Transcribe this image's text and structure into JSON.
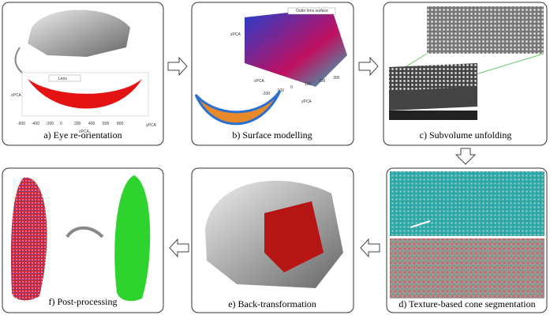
{
  "panels": [
    {
      "caption": "a) Eye re-orientation",
      "legend": "Lens",
      "axis_labels": [
        "zPCA",
        "xPCA",
        "yPCA"
      ],
      "ticks": [
        "-600",
        "-400",
        "-200",
        "0",
        "200",
        "400",
        "600",
        "800"
      ]
    },
    {
      "caption": "b) Surface modelling",
      "legend": "Outer lens surface",
      "axis_labels": [
        "zPCA",
        "xPCA",
        "yPCA"
      ],
      "ticks": [
        "-200",
        "-100",
        "0",
        "100",
        "200",
        "300"
      ]
    },
    {
      "caption": "c) Subvolume unfolding"
    },
    {
      "caption": "d) Texture-based cone segmentation"
    },
    {
      "caption": "e) Back-transformation"
    },
    {
      "caption": "f) Post-processing"
    }
  ]
}
